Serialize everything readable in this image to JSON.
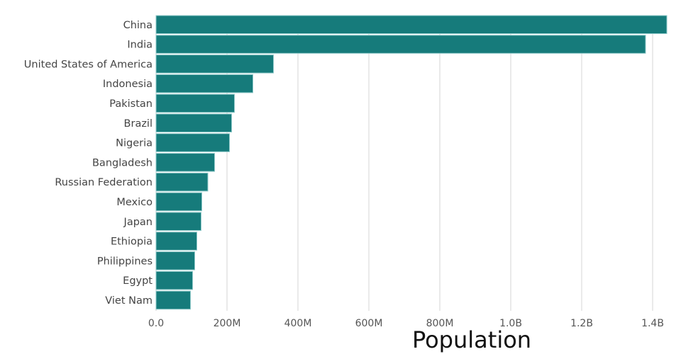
{
  "chart_data": {
    "type": "bar",
    "orientation": "horizontal",
    "title": "",
    "xlabel": "Population",
    "ylabel": "",
    "categories": [
      "China",
      "India",
      "United States of America",
      "Indonesia",
      "Pakistan",
      "Brazil",
      "Nigeria",
      "Bangladesh",
      "Russian Federation",
      "Mexico",
      "Japan",
      "Ethiopia",
      "Philippines",
      "Egypt",
      "Viet Nam"
    ],
    "values": [
      1440000000,
      1380000000,
      331000000,
      273000000,
      221000000,
      213000000,
      207000000,
      165000000,
      146000000,
      129000000,
      127000000,
      115000000,
      109000000,
      103000000,
      97000000
    ],
    "xlim": [
      0,
      1440000000
    ],
    "xticks": [
      0,
      200000000,
      400000000,
      600000000,
      800000000,
      1000000000,
      1200000000,
      1400000000
    ],
    "xtick_labels": [
      "0.0",
      "200M",
      "400M",
      "600M",
      "800M",
      "1.0B",
      "1.2B",
      "1.4B"
    ],
    "grid": "vertical",
    "bar_color": "#167b7b",
    "bar_stroke": "#8fc9c9"
  }
}
